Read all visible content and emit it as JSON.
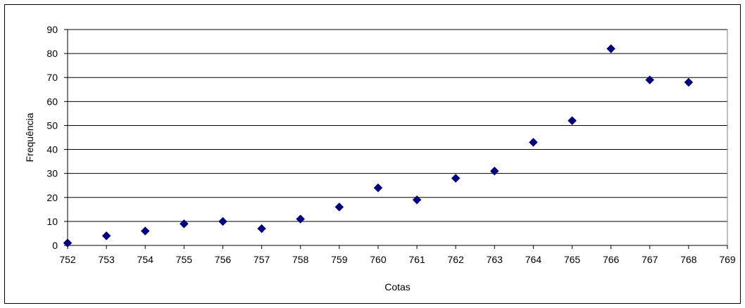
{
  "chart_data": {
    "type": "scatter",
    "xlabel": "Cotas",
    "ylabel": "Frequência",
    "xlim": [
      752,
      769
    ],
    "ylim": [
      0,
      90
    ],
    "x_ticks": [
      "752",
      "753",
      "754",
      "755",
      "756",
      "757",
      "758",
      "759",
      "760",
      "761",
      "762",
      "763",
      "764",
      "765",
      "766",
      "767",
      "768",
      "769"
    ],
    "y_ticks": [
      "0",
      "10",
      "20",
      "30",
      "40",
      "50",
      "60",
      "70",
      "80",
      "90"
    ],
    "grid": "horizontal",
    "marker": "diamond",
    "series": [
      {
        "x": [
          752,
          753,
          754,
          755,
          756,
          757,
          758,
          759,
          760,
          761,
          762,
          763,
          764,
          765,
          766,
          767,
          768
        ],
        "y": [
          1,
          4,
          6,
          9,
          10,
          7,
          11,
          16,
          24,
          19,
          28,
          31,
          43,
          52,
          82,
          69,
          68
        ]
      }
    ],
    "colors": {
      "marker": "#000080",
      "grid": "#000000",
      "plot_bg": "#ffffff"
    }
  }
}
